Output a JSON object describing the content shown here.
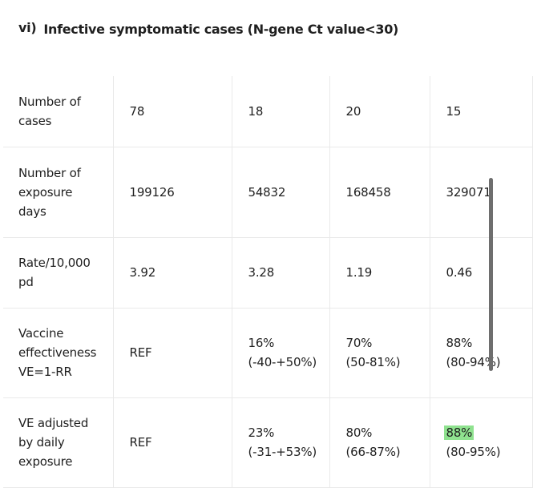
{
  "heading": {
    "number": "vi)",
    "title": "Infective symptomatic cases (N-gene Ct value<30)"
  },
  "rows": [
    {
      "label": [
        "Number of",
        "cases"
      ],
      "values": [
        [
          "78"
        ],
        [
          "18"
        ],
        [
          "20"
        ],
        [
          "15"
        ]
      ]
    },
    {
      "label": [
        "Number of",
        "exposure",
        "days"
      ],
      "values": [
        [
          "199126"
        ],
        [
          "54832"
        ],
        [
          "168458"
        ],
        [
          "329071"
        ]
      ]
    },
    {
      "label": [
        "Rate/10,000",
        "pd"
      ],
      "values": [
        [
          "3.92"
        ],
        [
          "3.28"
        ],
        [
          "1.19"
        ],
        [
          "0.46"
        ]
      ]
    },
    {
      "label": [
        "Vaccine",
        "effectiveness",
        "VE=1-RR"
      ],
      "values": [
        [
          "REF"
        ],
        [
          "16%",
          "(-40-+50%)"
        ],
        [
          "70%",
          "(50-81%)"
        ],
        [
          "88%",
          "(80-94%)"
        ]
      ]
    },
    {
      "label": [
        "VE adjusted",
        "by daily",
        "exposure"
      ],
      "values": [
        [
          "REF"
        ],
        [
          "23%",
          "(-31-+53%)"
        ],
        [
          "80%",
          "(66-87%)"
        ],
        [
          "88%",
          "(80-95%)"
        ]
      ]
    }
  ],
  "highlight_color": "#8fe28f"
}
